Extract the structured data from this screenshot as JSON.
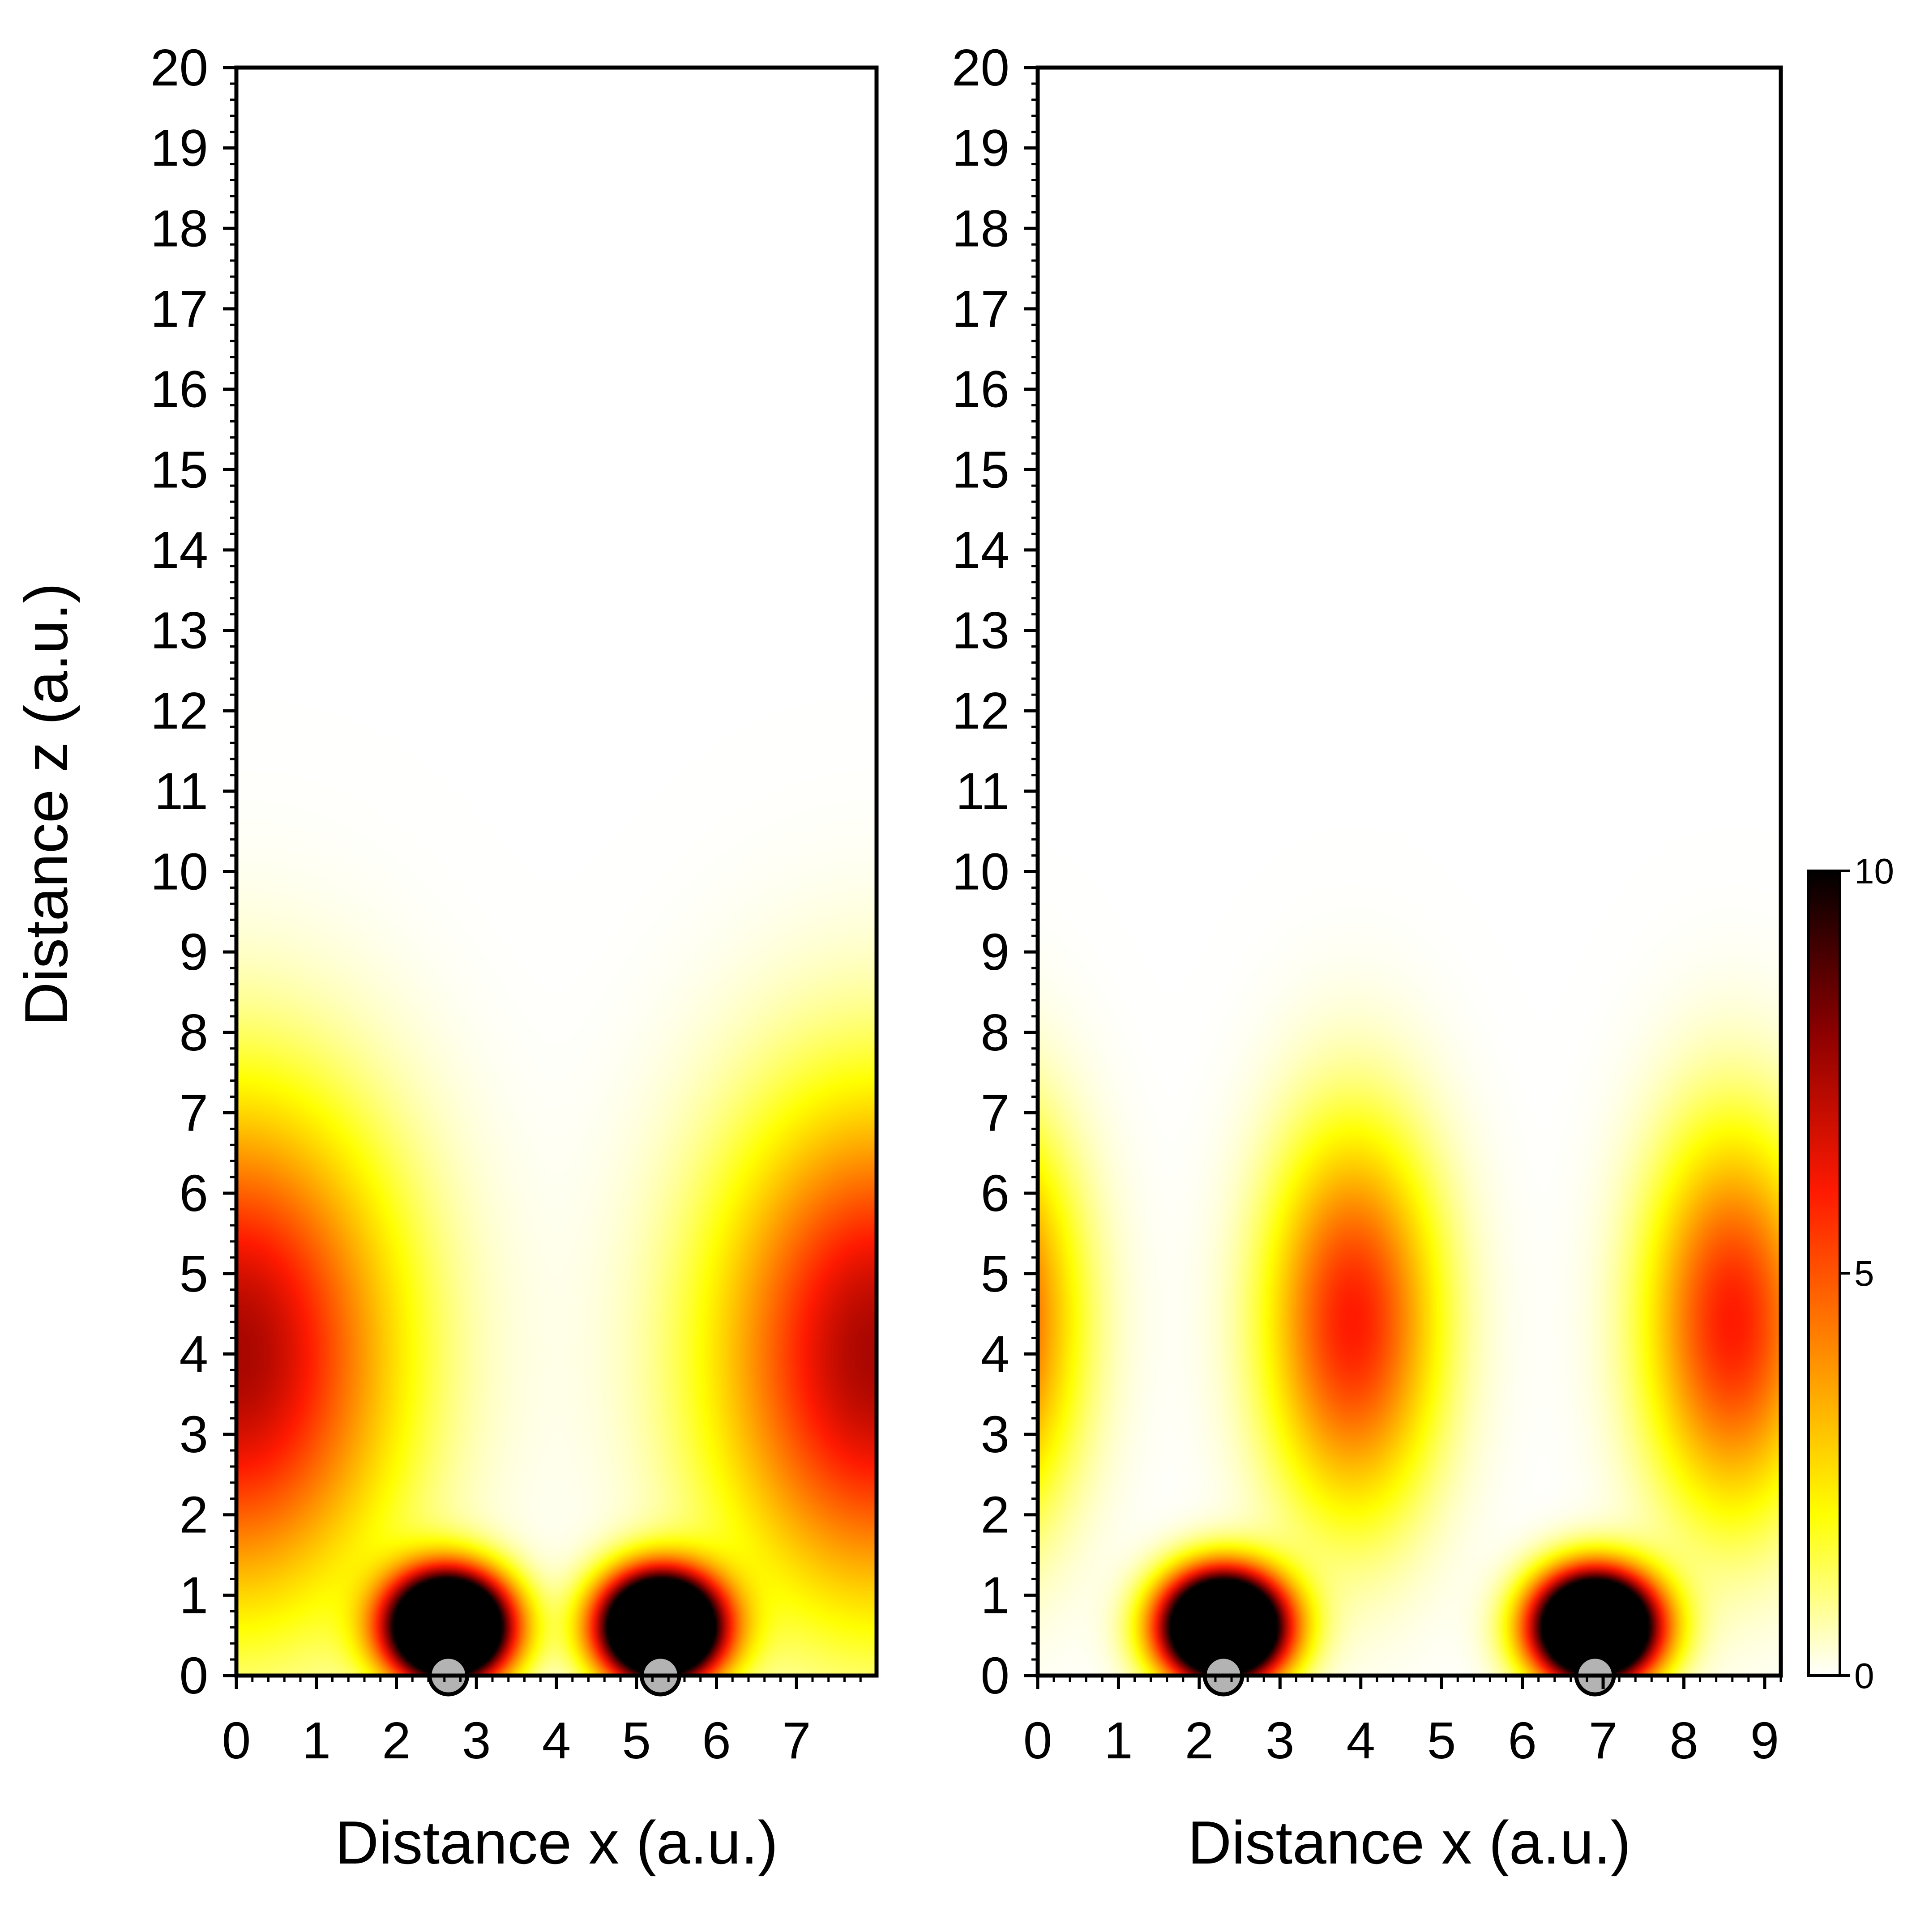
{
  "chart_data": [
    {
      "type": "heatmap",
      "xlabel": "Distance x (a.u.)",
      "ylabel": "Distance z (a.u.)",
      "xlim": [
        0,
        8.0
      ],
      "ylim": [
        0,
        20
      ],
      "x_ticks": [
        "0",
        "1",
        "2",
        "3",
        "4",
        "5",
        "6",
        "7"
      ],
      "x_tick_values": [
        0,
        1,
        2,
        3,
        4,
        5,
        6,
        7
      ],
      "y_ticks": [
        "0",
        "1",
        "2",
        "3",
        "4",
        "5",
        "6",
        "7",
        "8",
        "9",
        "10",
        "11",
        "12",
        "13",
        "14",
        "15",
        "16",
        "17",
        "18",
        "19",
        "20"
      ],
      "y_tick_values": [
        0,
        1,
        2,
        3,
        4,
        5,
        6,
        7,
        8,
        9,
        10,
        11,
        12,
        13,
        14,
        15,
        16,
        17,
        18,
        19,
        20
      ],
      "atoms": [
        {
          "x": 2.65,
          "z": 0
        },
        {
          "x": 5.3,
          "z": 0
        }
      ],
      "peaks": [
        {
          "x": 2.65,
          "z": 0.6,
          "sx": 0.5,
          "sz": 0.45,
          "amplitude": 24
        },
        {
          "x": 5.3,
          "z": 0.6,
          "sx": 0.5,
          "sz": 0.45,
          "amplitude": 24
        },
        {
          "x": 0.0,
          "z": 4.0,
          "sx": 1.35,
          "sz": 2.1,
          "amplitude": 7.5
        },
        {
          "x": 8.0,
          "z": 4.0,
          "sx": 1.35,
          "sz": 2.1,
          "amplitude": 7.5
        }
      ]
    },
    {
      "type": "heatmap",
      "xlabel": "Distance x (a.u.)",
      "ylabel": "",
      "xlim": [
        0,
        9.2
      ],
      "ylim": [
        0,
        20
      ],
      "x_ticks": [
        "0",
        "1",
        "2",
        "3",
        "4",
        "5",
        "6",
        "7",
        "8",
        "9"
      ],
      "x_tick_values": [
        0,
        1,
        2,
        3,
        4,
        5,
        6,
        7,
        8,
        9
      ],
      "y_ticks": [
        "0",
        "1",
        "2",
        "3",
        "4",
        "5",
        "6",
        "7",
        "8",
        "9",
        "10",
        "11",
        "12",
        "13",
        "14",
        "15",
        "16",
        "17",
        "18",
        "19",
        "20"
      ],
      "y_tick_values": [
        0,
        1,
        2,
        3,
        4,
        5,
        6,
        7,
        8,
        9,
        10,
        11,
        12,
        13,
        14,
        15,
        16,
        17,
        18,
        19,
        20
      ],
      "atoms": [
        {
          "x": 2.3,
          "z": 0
        },
        {
          "x": 6.9,
          "z": 0
        }
      ],
      "peaks": [
        {
          "x": 2.3,
          "z": 0.6,
          "sx": 0.5,
          "sz": 0.45,
          "amplitude": 24
        },
        {
          "x": 6.9,
          "z": 0.6,
          "sx": 0.5,
          "sz": 0.45,
          "amplitude": 24
        },
        {
          "x": 3.9,
          "z": 4.4,
          "sx": 0.72,
          "sz": 1.6,
          "amplitude": 6.0
        },
        {
          "x": 8.6,
          "z": 4.4,
          "sx": 0.72,
          "sz": 1.6,
          "amplitude": 6.0
        },
        {
          "x": -0.6,
          "z": 4.4,
          "sx": 0.72,
          "sz": 1.6,
          "amplitude": 6.0
        }
      ]
    }
  ],
  "colorbar": {
    "min": 0,
    "max": 10,
    "ticks": [
      "0",
      "5",
      "10"
    ],
    "tick_values": [
      0,
      5,
      10
    ],
    "colors": [
      "#ffffff",
      "#ffff00",
      "#ff8c00",
      "#ff1a00",
      "#8b0000",
      "#000000"
    ]
  }
}
